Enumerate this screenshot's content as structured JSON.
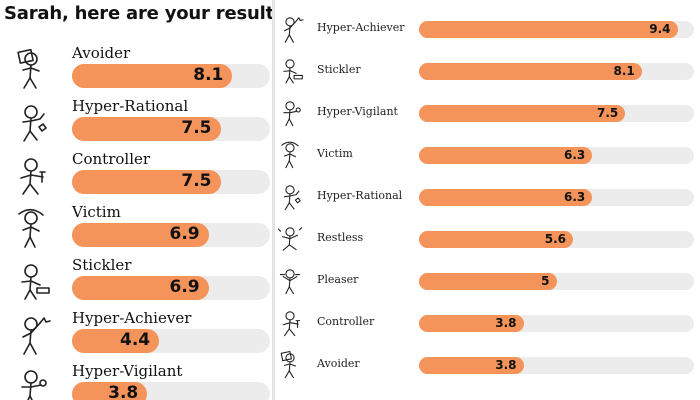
{
  "left_panel": {
    "title": "Sarah, here are your results",
    "max_score": 10,
    "results": [
      {
        "label": "Avoider",
        "score": 8.1,
        "score_text": "8.1",
        "icon": "avoider-figure-icon"
      },
      {
        "label": "Hyper-Rational",
        "score": 7.5,
        "score_text": "7.5",
        "icon": "hyper-rational-figure-icon"
      },
      {
        "label": "Controller",
        "score": 7.5,
        "score_text": "7.5",
        "icon": "controller-figure-icon"
      },
      {
        "label": "Victim",
        "score": 6.9,
        "score_text": "6.9",
        "icon": "victim-figure-icon"
      },
      {
        "label": "Stickler",
        "score": 6.9,
        "score_text": "6.9",
        "icon": "stickler-figure-icon"
      },
      {
        "label": "Hyper-Achiever",
        "score": 4.4,
        "score_text": "4.4",
        "icon": "hyper-achiever-figure-icon"
      },
      {
        "label": "Hyper-Vigilant",
        "score": 3.8,
        "score_text": "3.8",
        "icon": "hyper-vigilant-figure-icon"
      }
    ]
  },
  "right_panel": {
    "max_score": 10,
    "results": [
      {
        "label": "Hyper-Achiever",
        "score": 9.4,
        "score_text": "9.4",
        "icon": "hyper-achiever-figure-icon"
      },
      {
        "label": "Stickler",
        "score": 8.1,
        "score_text": "8.1",
        "icon": "stickler-figure-icon"
      },
      {
        "label": "Hyper-Vigilant",
        "score": 7.5,
        "score_text": "7.5",
        "icon": "hyper-vigilant-figure-icon"
      },
      {
        "label": "Victim",
        "score": 6.3,
        "score_text": "6.3",
        "icon": "victim-figure-icon"
      },
      {
        "label": "Hyper-Rational",
        "score": 6.3,
        "score_text": "6.3",
        "icon": "hyper-rational-figure-icon"
      },
      {
        "label": "Restless",
        "score": 5.6,
        "score_text": "5.6",
        "icon": "restless-figure-icon"
      },
      {
        "label": "Pleaser",
        "score": 5,
        "score_text": "5",
        "icon": "pleaser-figure-icon"
      },
      {
        "label": "Controller",
        "score": 3.8,
        "score_text": "3.8",
        "icon": "controller-figure-icon"
      },
      {
        "label": "Avoider",
        "score": 3.8,
        "score_text": "3.8",
        "icon": "avoider-figure-icon"
      }
    ]
  },
  "colors": {
    "bar_fill": "#f4935a",
    "bar_track": "#ececec",
    "text": "#111111",
    "divider": "#e4e4e4"
  }
}
